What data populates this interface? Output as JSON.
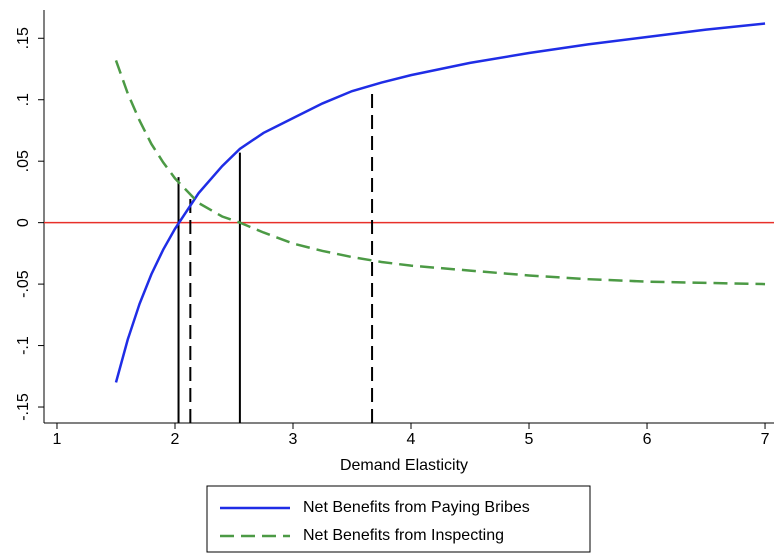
{
  "chart_data": {
    "type": "line",
    "x_label": "Demand Elasticity",
    "x": [
      1.5,
      1.6,
      1.7,
      1.8,
      1.9,
      2.0,
      2.2,
      2.4,
      2.55,
      2.75,
      3,
      3.25,
      3.5,
      3.75,
      4,
      4.5,
      5,
      5.5,
      6,
      6.5,
      7
    ],
    "series": [
      {
        "name": "Net Benefits from Paying Bribes",
        "color": "#1f2de6",
        "dash": "solid",
        "values": [
          -0.13,
          -0.095,
          -0.066,
          -0.042,
          -0.022,
          -0.005,
          0.024,
          0.046,
          0.06,
          0.073,
          0.085,
          0.097,
          0.107,
          0.114,
          0.12,
          0.13,
          0.138,
          0.145,
          0.151,
          0.157,
          0.162
        ]
      },
      {
        "name": "Net Benefits from Inspecting",
        "color": "#4c9a45",
        "dash": "dashed",
        "values": [
          0.132,
          0.105,
          0.083,
          0.064,
          0.049,
          0.036,
          0.016,
          0.005,
          0,
          -0.008,
          -0.017,
          -0.023,
          -0.028,
          -0.032,
          -0.035,
          -0.039,
          -0.043,
          -0.046,
          -0.048,
          -0.049,
          -0.05
        ]
      }
    ],
    "hline": {
      "y": 0,
      "color": "#e8302a"
    },
    "vlines": [
      {
        "x": 2.03,
        "y": 0.037,
        "dash": "solid"
      },
      {
        "x": 2.13,
        "y": 0.022,
        "dash": "dashed"
      },
      {
        "x": 2.55,
        "y": 0.057,
        "dash": "solid"
      },
      {
        "x": 3.67,
        "y": 0.108,
        "dash": "dashed"
      }
    ],
    "xlim": [
      0.89,
      7.076
    ],
    "ylim": [
      -0.163,
      0.173
    ],
    "xticks": [
      1,
      2,
      3,
      4,
      5,
      6,
      7
    ],
    "yticks": [
      {
        "value": 0.15,
        "label": ".15"
      },
      {
        "value": 0.1,
        "label": ".1"
      },
      {
        "value": 0.05,
        "label": ".05"
      },
      0,
      {
        "value": -0.05,
        "label": "-.05"
      },
      {
        "value": -0.1,
        "label": "-.1"
      },
      {
        "value": -0.15,
        "label": "-.15"
      }
    ],
    "legend": "bottom"
  }
}
